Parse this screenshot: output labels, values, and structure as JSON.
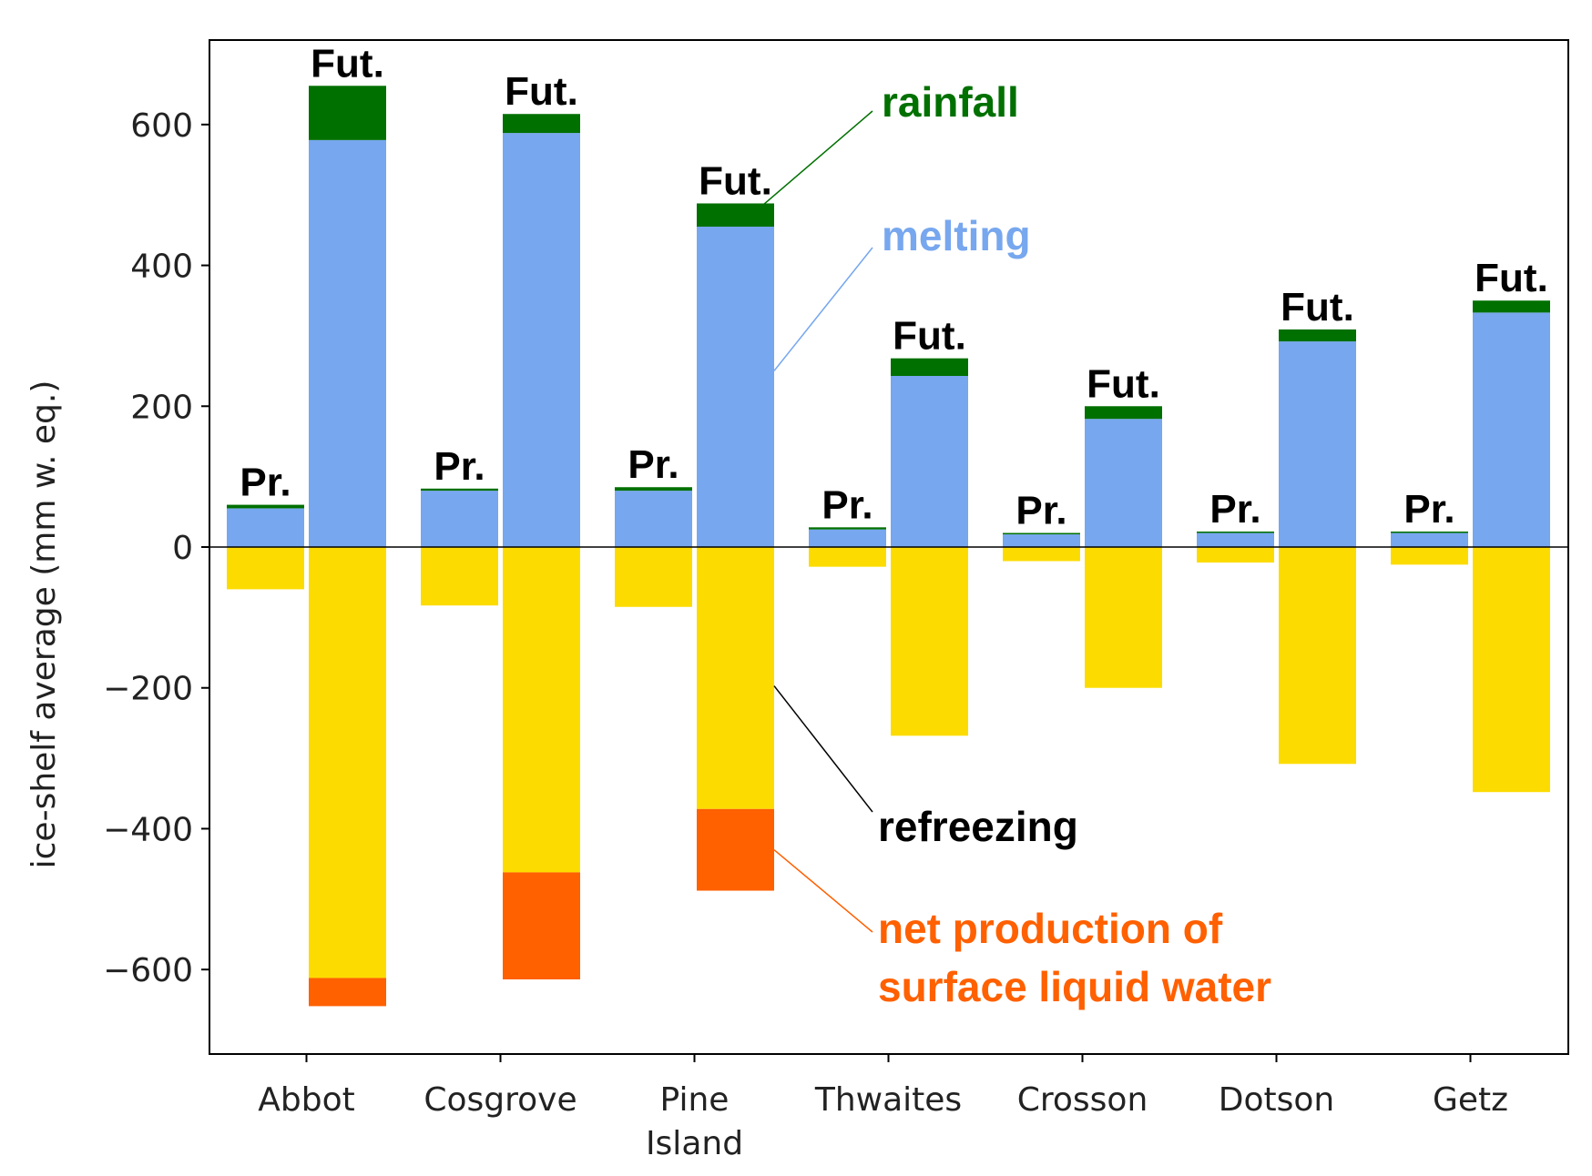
{
  "chart_data": {
    "type": "bar",
    "stacked": true,
    "ylabel": "ice-shelf average (mm w. eq.)",
    "ylim": [
      -720,
      720
    ],
    "yticks": [
      600,
      400,
      200,
      0,
      -200,
      -400,
      -600
    ],
    "ytick_labels": [
      "600",
      "400",
      "200",
      "0",
      "−200",
      "−400",
      "−600"
    ],
    "categories": [
      [
        "Abbot"
      ],
      [
        "Cosgrove"
      ],
      [
        "Pine",
        "Island"
      ],
      [
        "Thwaites"
      ],
      [
        "Crosson"
      ],
      [
        "Dotson"
      ],
      [
        "Getz"
      ]
    ],
    "period_labels": {
      "present": "Pr.",
      "future": "Fut."
    },
    "series": [
      {
        "name": "melting",
        "color": "#77a7ee",
        "present": [
          55,
          80,
          80,
          25,
          18,
          20,
          20
        ],
        "future": [
          578,
          588,
          455,
          243,
          182,
          292,
          333
        ]
      },
      {
        "name": "rainfall",
        "color": "#007000",
        "present": [
          5,
          3,
          5,
          3,
          2,
          2,
          2
        ],
        "future": [
          77,
          27,
          33,
          25,
          18,
          17,
          17
        ]
      },
      {
        "name": "refreezing",
        "color": "#fcdc00",
        "present": [
          -60,
          -83,
          -85,
          -28,
          -20,
          -22,
          -25
        ],
        "future": [
          -612,
          -462,
          -372,
          -268,
          -200,
          -308,
          -348
        ]
      },
      {
        "name": "net production of surface liquid water",
        "color": "#ff6000",
        "present": [
          0,
          0,
          0,
          0,
          0,
          0,
          0
        ],
        "future": [
          -40,
          -152,
          -116,
          0,
          0,
          0,
          0
        ]
      }
    ],
    "annotations": [
      {
        "lines": [
          "rainfall"
        ],
        "color": "#007000"
      },
      {
        "lines": [
          "melting"
        ],
        "color": "#77a7ee"
      },
      {
        "lines": [
          "refreezing"
        ],
        "color": "#000000"
      },
      {
        "lines": [
          "net production of",
          "surface liquid water"
        ],
        "color": "#ff6000"
      }
    ]
  }
}
